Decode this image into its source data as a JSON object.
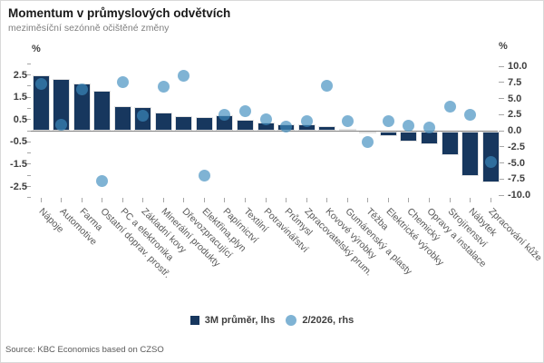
{
  "header": {
    "title": "Momentum v průmyslových odvětvích",
    "subtitle": "meziměsíční sezónně očištěné změny"
  },
  "footer": {
    "source": "Source: KBC Economics based on CZSO"
  },
  "legend": [
    {
      "label": "3M průměr, lhs",
      "marker": "square"
    },
    {
      "label": "2/2026, rhs",
      "marker": "circle"
    }
  ],
  "colors": {
    "bar_navy": "#17375E",
    "dot_blue": "rgba(60,140,190,0.66)",
    "zero_line": "#808080",
    "tick": "#a6a6a6",
    "axis_text": "#404040",
    "category_text": "#595959",
    "title_text": "#1a1a1a",
    "subtitle_text": "#7f7f7f"
  },
  "chart_data": {
    "type": "bar",
    "combo": "bar+scatter",
    "title": "Momentum v průmyslových odvětvích",
    "subtitle": "meziměsíční sezónně očištěné změny",
    "grid": false,
    "legend_position": "bottom",
    "categories": [
      "Nápoje",
      "Automotive",
      "Farma",
      "Ostatní doprav. prostř.",
      "PC a elektronika",
      "Základní kovy",
      "Minerální produkty",
      "Dřevozpracující",
      "Elektřina,plyn",
      "Papírnictví",
      "Textilní",
      "Potravinářství",
      "Průmysl",
      "Zpracovatelský prum.",
      "Kovové výrobky",
      "Gumárenský a plasty",
      "Těžba",
      "Elektrické výrobky",
      "Chemický",
      "Opravy a instalace",
      "Strojírenství",
      "Nábytek",
      "Zpracování kůže"
    ],
    "series": [
      {
        "name": "3M průměr, lhs",
        "type": "bar",
        "axis": "lhs",
        "values": [
          2.5,
          2.3,
          2.1,
          1.8,
          1.1,
          1.05,
          0.8,
          0.65,
          0.6,
          0.7,
          0.5,
          0.35,
          0.3,
          0.3,
          0.2,
          0.1,
          -0.05,
          -0.25,
          -0.5,
          -0.6,
          -1.1,
          -2.05,
          -2.3
        ]
      },
      {
        "name": "2/2026, rhs",
        "type": "scatter",
        "axis": "rhs",
        "values": [
          7.3,
          0.9,
          6.4,
          -7.8,
          7.5,
          2.3,
          6.8,
          8.5,
          -7.0,
          2.5,
          3.0,
          1.7,
          0.6,
          1.5,
          7.0,
          1.5,
          -1.8,
          1.5,
          0.8,
          0.5,
          3.7,
          2.5,
          -4.8
        ]
      }
    ],
    "left_axis": {
      "unit": "%",
      "min": -3,
      "max": 3,
      "minor_step": 0.5,
      "labels": [
        "2.5",
        "1.5",
        "0.5",
        "-0.5",
        "-1.5",
        "-2.5"
      ],
      "label_values": [
        2.5,
        1.5,
        0.5,
        -0.5,
        -1.5,
        -2.5
      ]
    },
    "right_axis": {
      "unit": "%",
      "min": -10,
      "max": 10,
      "step": 2.5,
      "labels": [
        "10.0",
        "7.5",
        "5.0",
        "2.5",
        "0.0",
        "-2.5",
        "-5.0",
        "-7.5",
        "-10.0"
      ],
      "label_values": [
        10,
        7.5,
        5,
        2.5,
        0,
        -2.5,
        -5,
        -7.5,
        -10
      ]
    }
  }
}
